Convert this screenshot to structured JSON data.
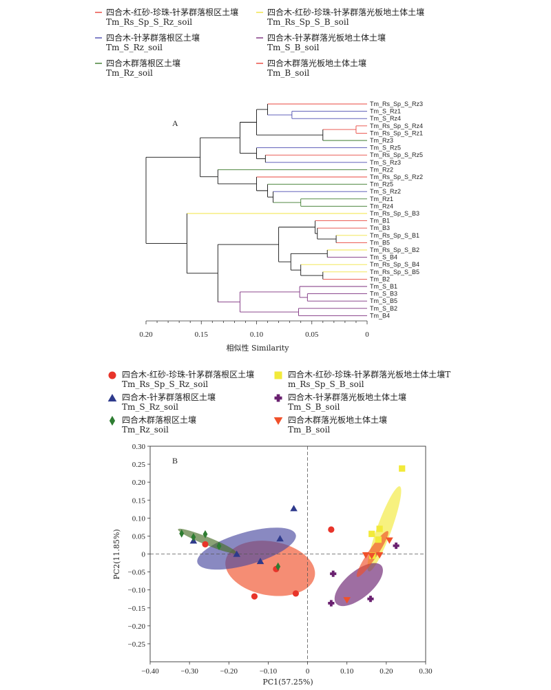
{
  "legend_a": [
    {
      "zh": "四合木-红砂-珍珠-针茅群落根区土壤",
      "code": "Tm_Rs_Sp_S_Rz_soil",
      "color": "#e8453c"
    },
    {
      "zh": "四合木-红砂-珍珠-针茅群落光板地土体土壤",
      "code": "Tm_Rs_Sp_S_B_soil",
      "color": "#f0e442"
    },
    {
      "zh": "四合木-针茅群落根区土壤",
      "code": "Tm_S_Rz_soil",
      "color": "#4b4bb0"
    },
    {
      "zh": "四合木-针茅群落光板地土体土壤",
      "code": "Tm_S_B_soil",
      "color": "#7b2d7e"
    },
    {
      "zh": "四合木群落根区土壤",
      "code": "Tm_Rz_soil",
      "color": "#3a7a2a"
    },
    {
      "zh": "四合木群落光板地土体土壤",
      "code": "Tm_B_soil",
      "color": "#e8453c"
    }
  ],
  "legend_b": [
    {
      "zh": "四合木-红砂-珍珠-针茅群落根区土壤",
      "code": "Tm_Rs_Sp_S_Rz_soil",
      "color": "#e8342a",
      "marker": "circle"
    },
    {
      "zh": "四合木-红砂-珍珠-针茅群落光板地土体土壤T",
      "code": "m_Rs_Sp_S_B_soil",
      "color": "#f2ea3a",
      "marker": "square"
    },
    {
      "zh": "四合木-针茅群落根区土壤",
      "code": "Tm_S_Rz_soil",
      "color": "#2e3a8c",
      "marker": "triangle"
    },
    {
      "zh": "四合木-针茅群落光板地土体土壤",
      "code": "Tm_S_B_soil",
      "color": "#6a2170",
      "marker": "plus"
    },
    {
      "zh": "四合木群落根区土壤",
      "code": "Tm_Rz_soil",
      "color": "#2e7d32",
      "marker": "diamond"
    },
    {
      "zh": "四合木群落光板地土体土壤",
      "code": "Tm_B_soil",
      "color": "#f0502a",
      "marker": "invtriangle"
    }
  ],
  "chart_data": [
    {
      "type": "dendrogram",
      "panel_label": "A",
      "xlabel": "相似性 Similarity",
      "xticks": [
        0.2,
        0.15,
        0.1,
        0.05,
        0
      ],
      "xtick_labels": [
        "0.20",
        "0.15",
        "0.10",
        "0.05",
        "0"
      ],
      "xlim": [
        0.2,
        0
      ],
      "leaves": [
        {
          "label": "Tm_Rs_Sp_S_Rz3",
          "color": "#e8453c"
        },
        {
          "label": "Tm_S_Rz1",
          "color": "#4b4bb0"
        },
        {
          "label": "Tm_S_Rz4",
          "color": "#4b4bb0"
        },
        {
          "label": "Tm_Rs_Sp_S_Rz4",
          "color": "#e8453c"
        },
        {
          "label": "Tm_Rs_Sp_S_Rz1",
          "color": "#e8453c"
        },
        {
          "label": "Tm_Rz3",
          "color": "#3a7a2a"
        },
        {
          "label": "Tm_S_Rz5",
          "color": "#4b4bb0"
        },
        {
          "label": "Tm_Rs_Sp_S_Rz5",
          "color": "#e8453c"
        },
        {
          "label": "Tm_S_Rz3",
          "color": "#4b4bb0"
        },
        {
          "label": "Tm_Rz2",
          "color": "#3a7a2a"
        },
        {
          "label": "Tm_Rs_Sp_S_Rz2",
          "color": "#e8453c"
        },
        {
          "label": "Tm_Rz5",
          "color": "#3a7a2a"
        },
        {
          "label": "Tm_S_Rz2",
          "color": "#4b4bb0"
        },
        {
          "label": "Tm_Rz1",
          "color": "#3a7a2a"
        },
        {
          "label": "Tm_Rz4",
          "color": "#3a7a2a"
        },
        {
          "label": "Tm_Rs_Sp_S_B3",
          "color": "#f0e442"
        },
        {
          "label": "Tm_B1",
          "color": "#e8453c"
        },
        {
          "label": "Tm_B3",
          "color": "#e8453c"
        },
        {
          "label": "Tm_Rs_Sp_S_B1",
          "color": "#f0e442"
        },
        {
          "label": "Tm_B5",
          "color": "#e8453c"
        },
        {
          "label": "Tm_Rs_Sp_S_B2",
          "color": "#f0e442"
        },
        {
          "label": "Tm_S_B4",
          "color": "#7b2d7e"
        },
        {
          "label": "Tm_Rs_Sp_S_B4",
          "color": "#f0e442"
        },
        {
          "label": "Tm_Rs_Sp_S_B5",
          "color": "#f0e442"
        },
        {
          "label": "Tm_B2",
          "color": "#e8453c"
        },
        {
          "label": "Tm_S_B1",
          "color": "#7b2d7e"
        },
        {
          "label": "Tm_S_B3",
          "color": "#7b2d7e"
        },
        {
          "label": "Tm_S_B5",
          "color": "#7b2d7e"
        },
        {
          "label": "Tm_S_B2",
          "color": "#7b2d7e"
        },
        {
          "label": "Tm_B4",
          "color": "#7b2d7e"
        }
      ],
      "merges": [
        {
          "a": 1,
          "b": 2,
          "h": 0.068
        },
        {
          "a": 0,
          "b": "m0",
          "h": 0.09
        },
        {
          "a": 3,
          "b": 4,
          "h": 0.01
        },
        {
          "a": 5,
          "b": "m2",
          "h": 0.04
        },
        {
          "a": "m1",
          "b": "m3",
          "h": 0.1
        },
        {
          "a": 7,
          "b": 8,
          "h": 0.092
        },
        {
          "a": 6,
          "b": "m5",
          "h": 0.1
        },
        {
          "a": "m4",
          "b": "m6",
          "h": 0.115
        },
        {
          "a": 13,
          "b": 14,
          "h": 0.06
        },
        {
          "a": 12,
          "b": "m8",
          "h": 0.085
        },
        {
          "a": 11,
          "b": "m9",
          "h": 0.09
        },
        {
          "a": 10,
          "b": "m10",
          "h": 0.1
        },
        {
          "a": 9,
          "b": "m11",
          "h": 0.135
        },
        {
          "a": "m7",
          "b": "m12",
          "h": 0.151
        },
        {
          "a": 18,
          "b": 19,
          "h": 0.028
        },
        {
          "a": 17,
          "b": "m14",
          "h": 0.045
        },
        {
          "a": 16,
          "b": "m15",
          "h": 0.047
        },
        {
          "a": 20,
          "b": 21,
          "h": 0.036
        },
        {
          "a": 23,
          "b": 24,
          "h": 0.04
        },
        {
          "a": 22,
          "b": "m18",
          "h": 0.06
        },
        {
          "a": "m17",
          "b": "m19",
          "h": 0.069
        },
        {
          "a": "m16",
          "b": "m20",
          "h": 0.08
        },
        {
          "a": 26,
          "b": 27,
          "h": 0.054
        },
        {
          "a": 25,
          "b": "m22",
          "h": 0.061
        },
        {
          "a": 28,
          "b": 29,
          "h": 0.062
        },
        {
          "a": "m23",
          "b": "m24",
          "h": 0.115
        },
        {
          "a": "m21",
          "b": "m25",
          "h": 0.135
        },
        {
          "a": 15,
          "b": "m26",
          "h": 0.163
        },
        {
          "a": "m13",
          "b": "m27",
          "h": 0.2
        }
      ]
    },
    {
      "type": "scatter",
      "panel_label": "B",
      "xlabel": "PC1(57.25%)",
      "ylabel": "PC2(11.85%)",
      "xlim": [
        -0.4,
        0.3
      ],
      "ylim": [
        -0.3,
        0.3
      ],
      "xticks": [
        -0.4,
        -0.3,
        -0.2,
        -0.1,
        0,
        0.1,
        0.2,
        0.3
      ],
      "xtick_labels": [
        "−0.40",
        "−0.30",
        "−0.20",
        "−0.10",
        "0",
        "0.10",
        "0.20",
        "0.30"
      ],
      "yticks": [
        0.3,
        0.25,
        0.2,
        0.15,
        0.1,
        0.05,
        0,
        -0.05,
        -0.1,
        -0.15,
        -0.2,
        -0.25
      ],
      "ytick_labels": [
        "0.30",
        "0.25",
        "0.20",
        "0.15",
        "0.10",
        "0.05",
        "0",
        "−0.05",
        "−0.10",
        "−0.15",
        "−0.20",
        "−0.25"
      ],
      "series": [
        {
          "marker": "circle",
          "color": "#e8342a",
          "points": [
            [
              -0.26,
              0.027
            ],
            [
              -0.135,
              -0.118
            ],
            [
              -0.08,
              -0.042
            ],
            [
              -0.03,
              -0.11
            ],
            [
              0.06,
              0.068
            ]
          ]
        },
        {
          "marker": "square",
          "color": "#f2ea3a",
          "points": [
            [
              0.24,
              0.238
            ],
            [
              0.183,
              0.07
            ],
            [
              0.163,
              0.056
            ],
            [
              0.18,
              0.04
            ],
            [
              0.165,
              -0.005
            ]
          ]
        },
        {
          "marker": "triangle",
          "color": "#2e3a8c",
          "points": [
            [
              -0.29,
              0.037
            ],
            [
              -0.18,
              0.0
            ],
            [
              -0.12,
              -0.02
            ],
            [
              -0.07,
              0.043
            ],
            [
              -0.035,
              0.127
            ]
          ]
        },
        {
          "marker": "plus",
          "color": "#6a2170",
          "points": [
            [
              0.065,
              -0.055
            ],
            [
              0.06,
              -0.137
            ],
            [
              0.16,
              -0.125
            ],
            [
              0.225,
              0.023
            ]
          ]
        },
        {
          "marker": "diamond",
          "color": "#2e7d32",
          "points": [
            [
              -0.32,
              0.057
            ],
            [
              -0.29,
              0.047
            ],
            [
              -0.26,
              0.055
            ],
            [
              -0.225,
              0.022
            ],
            [
              -0.075,
              -0.035
            ]
          ]
        },
        {
          "marker": "invtriangle",
          "color": "#f0502a",
          "points": [
            [
              0.1,
              -0.128
            ],
            [
              0.148,
              -0.003
            ],
            [
              0.163,
              -0.005
            ],
            [
              0.183,
              -0.003
            ],
            [
              0.208,
              0.038
            ]
          ]
        }
      ],
      "ellipses": [
        {
          "color": "#f0502a",
          "center": [
            -0.095,
            -0.04
          ],
          "rx": 0.115,
          "ry": 0.075,
          "angle": -10
        },
        {
          "color": "#4a4aa0",
          "center": [
            -0.155,
            0.015
          ],
          "rx": 0.13,
          "ry": 0.045,
          "angle": 16
        },
        {
          "color": "#4a6e2a",
          "center": [
            -0.255,
            0.036
          ],
          "rx": 0.08,
          "ry": 0.011,
          "angle": -22
        },
        {
          "color": "#f2ea3a",
          "center": [
            0.195,
            0.07
          ],
          "rx": 0.115,
          "ry": 0.02,
          "angle": 70
        },
        {
          "color": "#6a2170",
          "center": [
            0.13,
            -0.085
          ],
          "rx": 0.075,
          "ry": 0.037,
          "angle": 40
        },
        {
          "color": "#f0502a",
          "center": [
            0.165,
            0.0
          ],
          "rx": 0.07,
          "ry": 0.013,
          "angle": 56
        }
      ]
    }
  ]
}
